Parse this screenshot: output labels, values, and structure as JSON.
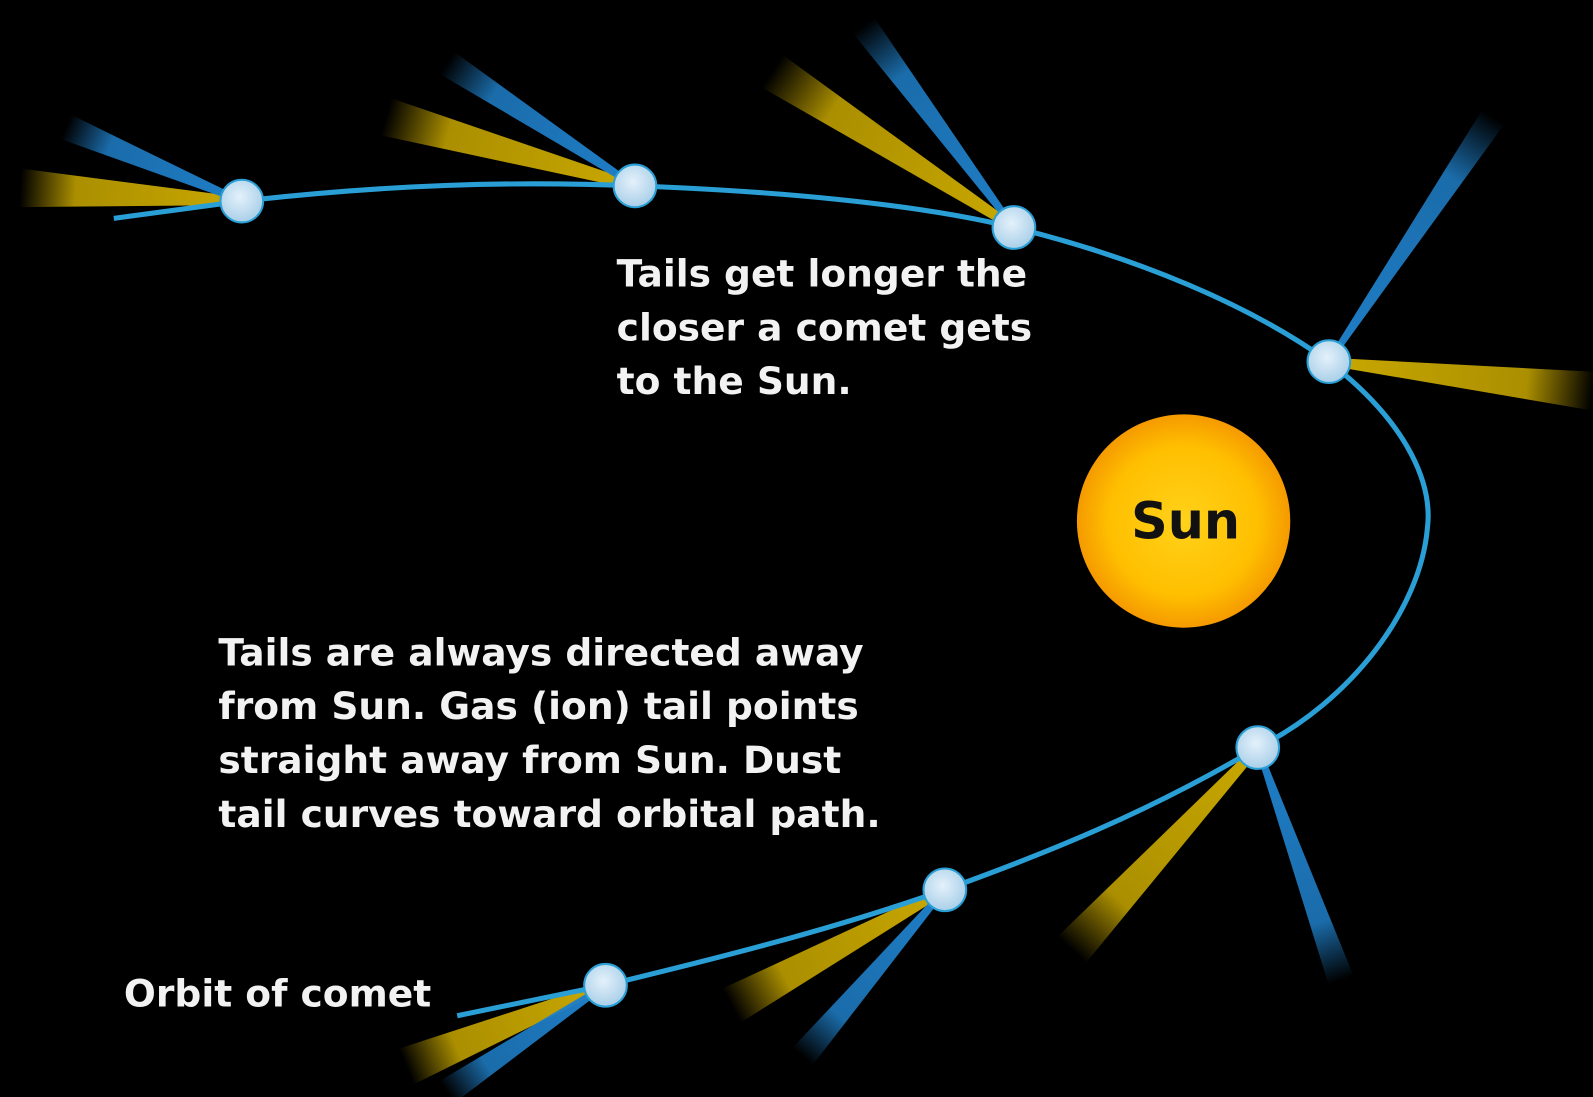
{
  "sun_label": "Sun",
  "annotations": [
    {
      "lines": [
        "Tails get longer the",
        "closer a comet gets",
        "to the Sun."
      ]
    },
    {
      "lines": [
        "Tails are always directed away",
        "from Sun. Gas (ion) tail points",
        "straight away from Sun. Dust",
        "tail curves toward orbital path."
      ]
    }
  ],
  "orbit_label": "Orbit of comet"
}
